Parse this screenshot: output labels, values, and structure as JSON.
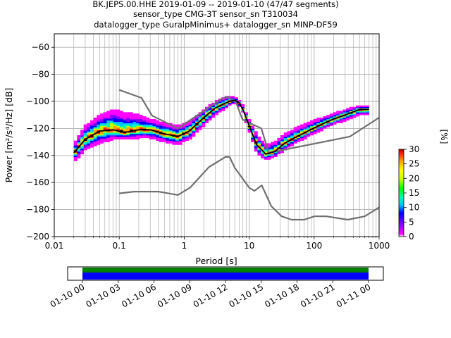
{
  "title_lines": [
    "BK.JEPS.00.HHE   2019-01-09 -- 2019-01-10  (47/47 segments)",
    "sensor_type CMG-3T sensor_sn T310034",
    "datalogger_type GuralpMinimus+ datalogger_sn MINP-DF59"
  ],
  "chart_data": {
    "type": "heatmap",
    "xlabel": "Period [s]",
    "ylabel": "Power [m²/s⁴/Hz] [dB]",
    "xscale": "log",
    "xlim": [
      0.01,
      1000
    ],
    "ylim": [
      -200,
      -50
    ],
    "x_ticks": [
      0.01,
      0.1,
      1,
      10,
      100,
      1000
    ],
    "x_tick_labels": [
      "0.01",
      "0.1",
      "1",
      "10",
      "100",
      "1000"
    ],
    "y_ticks": [
      -200,
      -180,
      -160,
      -140,
      -120,
      -100,
      -80,
      -60
    ],
    "y_tick_labels": [
      "−200",
      "−180",
      "−160",
      "−140",
      "−120",
      "−100",
      "−80",
      "−60"
    ],
    "grid": true,
    "colorbar": {
      "label": "[%]",
      "range": [
        0,
        30
      ],
      "ticks": [
        0,
        5,
        10,
        15,
        20,
        25,
        30
      ],
      "colormap": [
        "#ffffff",
        "#ff00ff",
        "#7a00ff",
        "#0000ff",
        "#00bfff",
        "#00ffb0",
        "#00ff00",
        "#c8ff00",
        "#ffff00",
        "#ffa500",
        "#ff2000",
        "#b00000"
      ]
    },
    "series": [
      {
        "role": "new_high_noise_model",
        "color": "#707070",
        "period": [
          0.1,
          0.22,
          0.32,
          0.8,
          3.8,
          4.6,
          6.3,
          7.9,
          15.4,
          20,
          354.8,
          1000
        ],
        "power": [
          -91.5,
          -97.4,
          -110.5,
          -120,
          -98,
          -96.5,
          -101,
          -113.5,
          -120,
          -138,
          -126,
          -112
        ]
      },
      {
        "role": "new_low_noise_model",
        "color": "#707070",
        "period": [
          0.1,
          0.17,
          0.4,
          0.8,
          1.24,
          2.4,
          4.3,
          5,
          6,
          10,
          12,
          15.6,
          21.9,
          31.6,
          45,
          70,
          101,
          154,
          328,
          600,
          1000
        ],
        "power": [
          -168,
          -166.7,
          -166.7,
          -169.2,
          -163.7,
          -148.6,
          -141.1,
          -141.1,
          -149,
          -163.8,
          -166.2,
          -162.1,
          -177.5,
          -185,
          -187.5,
          -187.5,
          -185,
          -185,
          -187.5,
          -185,
          -178.4
        ]
      },
      {
        "role": "mode",
        "color": "#000000",
        "period": [
          0.02,
          0.03,
          0.05,
          0.08,
          0.12,
          0.2,
          0.3,
          0.5,
          0.8,
          1.2,
          2,
          3,
          4,
          5,
          6,
          7,
          8,
          10,
          13,
          18,
          25,
          35,
          50,
          80,
          130,
          200,
          300,
          500,
          700
        ],
        "power": [
          -138,
          -128,
          -122,
          -121,
          -123,
          -121,
          -121,
          -124,
          -126,
          -122,
          -112,
          -105,
          -102,
          -100,
          -99,
          -101,
          -106,
          -118,
          -132,
          -139,
          -137,
          -131,
          -127,
          -122,
          -117,
          -113,
          -110,
          -106,
          -106
        ]
      }
    ],
    "envelope": {
      "period": [
        0.02,
        0.03,
        0.05,
        0.08,
        0.12,
        0.2,
        0.3,
        0.5,
        0.8,
        1.2,
        2,
        3,
        4,
        5,
        6,
        7,
        8,
        10,
        13,
        18,
        25,
        35,
        50,
        80,
        130,
        200,
        300,
        500,
        700
      ],
      "power_low": [
        -145,
        -136,
        -131,
        -128,
        -128,
        -127,
        -127,
        -130,
        -132,
        -128,
        -118,
        -110,
        -106,
        -103,
        -101,
        -103,
        -108,
        -122,
        -138,
        -143,
        -141,
        -136,
        -131,
        -126,
        -121,
        -117,
        -114,
        -110,
        -110
      ],
      "power_high": [
        -132,
        -118,
        -110,
        -106,
        -108,
        -110,
        -113,
        -116,
        -118,
        -115,
        -106,
        -100,
        -97,
        -96,
        -97,
        -99,
        -103,
        -113,
        -124,
        -132,
        -130,
        -124,
        -120,
        -116,
        -112,
        -109,
        -106,
        -103,
        -103
      ]
    },
    "time_axis": {
      "tick_labels": [
        "01-10 00",
        "01-10 03",
        "01-10 06",
        "01-10 09",
        "01-10 12",
        "01-10 15",
        "01-10 18",
        "01-10 21",
        "01-11 00"
      ],
      "data_start_label": "01-10 00",
      "data_end_label": "01-11 00",
      "bar_colors": [
        "#008000",
        "#0000ff"
      ]
    }
  }
}
